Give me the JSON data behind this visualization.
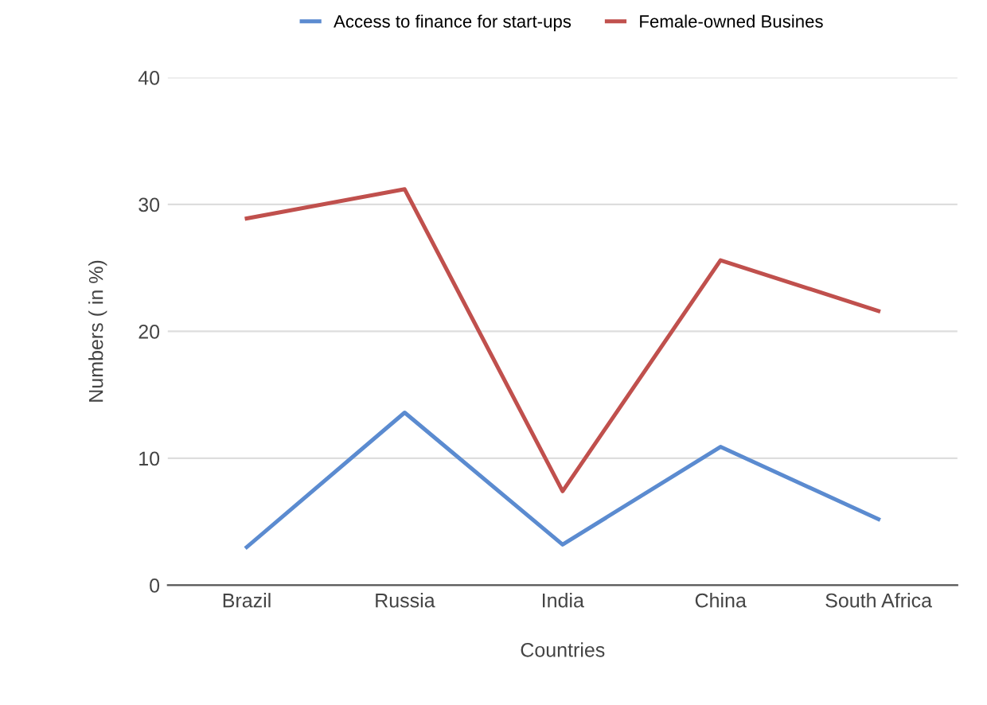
{
  "chart_data": {
    "type": "line",
    "xlabel": "Countries",
    "ylabel": "Numbers ( in %)",
    "categories": [
      "Brazil",
      "Russia",
      "India",
      "China",
      "South Africa"
    ],
    "series": [
      {
        "name": "Access to finance for start-ups",
        "color": "#5b8bd0",
        "values": [
          3.0,
          13.6,
          3.2,
          10.9,
          5.2
        ]
      },
      {
        "name": "Female-owned Busines",
        "color": "#c0504d",
        "values": [
          28.9,
          31.2,
          7.4,
          25.6,
          21.6
        ]
      }
    ],
    "ylim": [
      0,
      40
    ],
    "yticks": [
      0,
      10,
      20,
      30,
      40
    ],
    "grid": "y",
    "legend": "top",
    "marker": "none",
    "line_style": "solid"
  }
}
